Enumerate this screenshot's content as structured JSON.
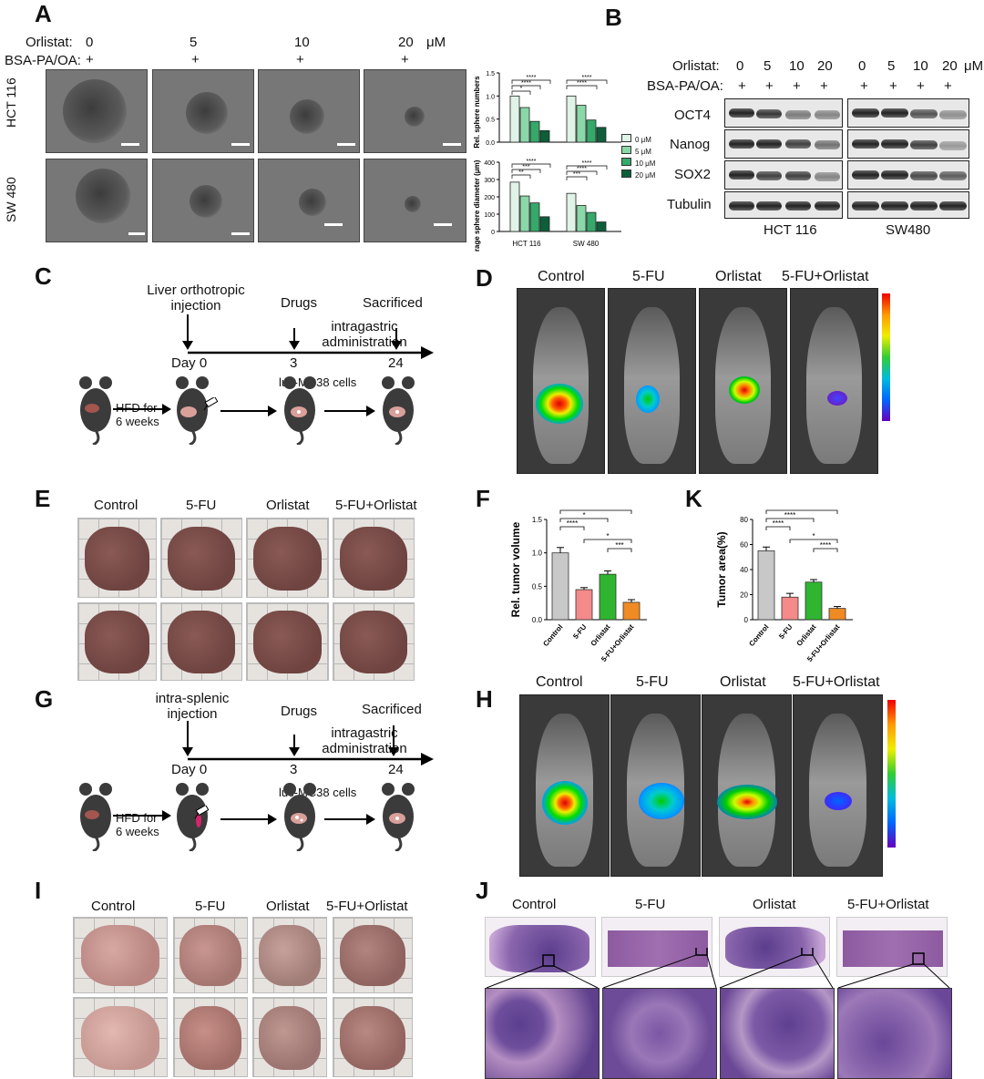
{
  "panels": {
    "A": "A",
    "B": "B",
    "C": "C",
    "D": "D",
    "E": "E",
    "F": "F",
    "K": "K",
    "G": "G",
    "H": "H",
    "I": "I",
    "J": "J"
  },
  "panelA": {
    "orlistat_label": "Orlistat:",
    "bsa_label": "BSA-PA/OA:",
    "doses": [
      "0",
      "5",
      "10",
      "20"
    ],
    "unit": "μM",
    "plus": "+",
    "rows": [
      "HCT 116",
      "SW 480"
    ]
  },
  "panelA_chart": {
    "top_ylabel": "Rel. sphere numbers",
    "bottom_ylabel": "Average sphere diameter (μm)",
    "legend": [
      "0 μM",
      "5 μM",
      "10 μM",
      "20 μM"
    ],
    "groups": [
      "HCT 116",
      "SW 480"
    ],
    "top_ticks": [
      "0.0",
      "0.5",
      "1.0",
      "1.5"
    ],
    "bottom_ticks": [
      "0",
      "100",
      "200",
      "300",
      "400"
    ],
    "sig": [
      "****",
      "****",
      "*",
      "****",
      "****"
    ],
    "sig2": [
      "****",
      "***",
      "**",
      "****",
      "****",
      "***"
    ]
  },
  "panelB": {
    "orlistat_label": "Orlistat:",
    "bsa_label": "BSA-PA/OA:",
    "doses": [
      "0",
      "5",
      "10",
      "20",
      "0",
      "5",
      "10",
      "20"
    ],
    "unit": "μM",
    "plus": "+",
    "proteins": [
      "OCT4",
      "Nanog",
      "SOX2",
      "Tubulin"
    ],
    "cells": [
      "HCT 116",
      "SW480"
    ]
  },
  "panelC": {
    "inj": "Liver orthotropic injection",
    "drugs": "Drugs",
    "sacrificed": "Sacrificed",
    "admin": "intragastric administration",
    "day": "Day 0",
    "d3": "3",
    "d24": "24",
    "hfd": "HFD for 6 weeks",
    "cells": "luc-MC38 cells"
  },
  "panelD": {
    "groups": [
      "Control",
      "5-FU",
      "Orlistat",
      "5-FU+Orlistat"
    ]
  },
  "panelE": {
    "groups": [
      "Control",
      "5-FU",
      "Orlistat",
      "5-FU+Orlistat"
    ]
  },
  "panelG": {
    "inj": "intra-splenic injection",
    "drugs": "Drugs",
    "sacrificed": "Sacrificed",
    "admin": "intragastric administration",
    "day": "Day 0",
    "d3": "3",
    "d24": "24",
    "hfd": "HFD for 6 weeks",
    "cells": "luc-MC38 cells"
  },
  "panelH": {
    "groups": [
      "Control",
      "5-FU",
      "Orlistat",
      "5-FU+Orlistat"
    ]
  },
  "panelI": {
    "groups": [
      "Control",
      "5-FU",
      "Orlistat",
      "5-FU+Orlistat"
    ]
  },
  "panelJ": {
    "groups": [
      "Control",
      "5-FU",
      "Orlistat",
      "5-FU+Orlistat"
    ]
  },
  "chart_data": [
    {
      "type": "bar",
      "title": "",
      "ylabel": "Rel. sphere numbers",
      "categories": [
        "HCT 116",
        "SW 480"
      ],
      "ylim": [
        0,
        1.5
      ],
      "series": [
        {
          "name": "0 μM",
          "values": [
            1.0,
            1.0
          ]
        },
        {
          "name": "5 μM",
          "values": [
            0.75,
            0.8
          ]
        },
        {
          "name": "10 μM",
          "values": [
            0.45,
            0.48
          ]
        },
        {
          "name": "20 μM",
          "values": [
            0.25,
            0.32
          ]
        }
      ],
      "colors": [
        "#dff3e6",
        "#8ad8a8",
        "#35a86a",
        "#0f5e3a"
      ]
    },
    {
      "type": "bar",
      "title": "",
      "ylabel": "Average sphere diameter (μm)",
      "categories": [
        "HCT 116",
        "SW 480"
      ],
      "ylim": [
        0,
        400
      ],
      "series": [
        {
          "name": "0 μM",
          "values": [
            285,
            220
          ]
        },
        {
          "name": "5 μM",
          "values": [
            205,
            150
          ]
        },
        {
          "name": "10 μM",
          "values": [
            165,
            110
          ]
        },
        {
          "name": "20 μM",
          "values": [
            85,
            55
          ]
        }
      ],
      "colors": [
        "#dff3e6",
        "#8ad8a8",
        "#35a86a",
        "#0f5e3a"
      ]
    },
    {
      "type": "bar",
      "ylabel": "Rel. tumor volume",
      "categories": [
        "Control",
        "5-FU",
        "Orlistat",
        "5-FU+Orlistat"
      ],
      "values": [
        1.0,
        0.45,
        0.68,
        0.26
      ],
      "errors": [
        0.08,
        0.03,
        0.05,
        0.04
      ],
      "ylim": [
        0,
        1.5
      ],
      "yticks": [
        "0.0",
        "0.5",
        "1.0",
        "1.5"
      ],
      "colors": [
        "#c8c8c8",
        "#f48a8a",
        "#2fb52f",
        "#f08a22"
      ],
      "sig": [
        "****",
        "*",
        "****",
        "*",
        "***"
      ]
    },
    {
      "type": "bar",
      "ylabel": "Tumor area(%)",
      "categories": [
        "Control",
        "5-FU",
        "Orlistat",
        "5-FU+Orlistat"
      ],
      "values": [
        55,
        18,
        30,
        9
      ],
      "errors": [
        3,
        3,
        2,
        1.5
      ],
      "ylim": [
        0,
        80
      ],
      "yticks": [
        "0",
        "20",
        "40",
        "60",
        "80"
      ],
      "colors": [
        "#c8c8c8",
        "#f48a8a",
        "#2fb52f",
        "#f08a22"
      ],
      "sig": [
        "****",
        "****",
        "****",
        "*",
        "****"
      ]
    }
  ]
}
